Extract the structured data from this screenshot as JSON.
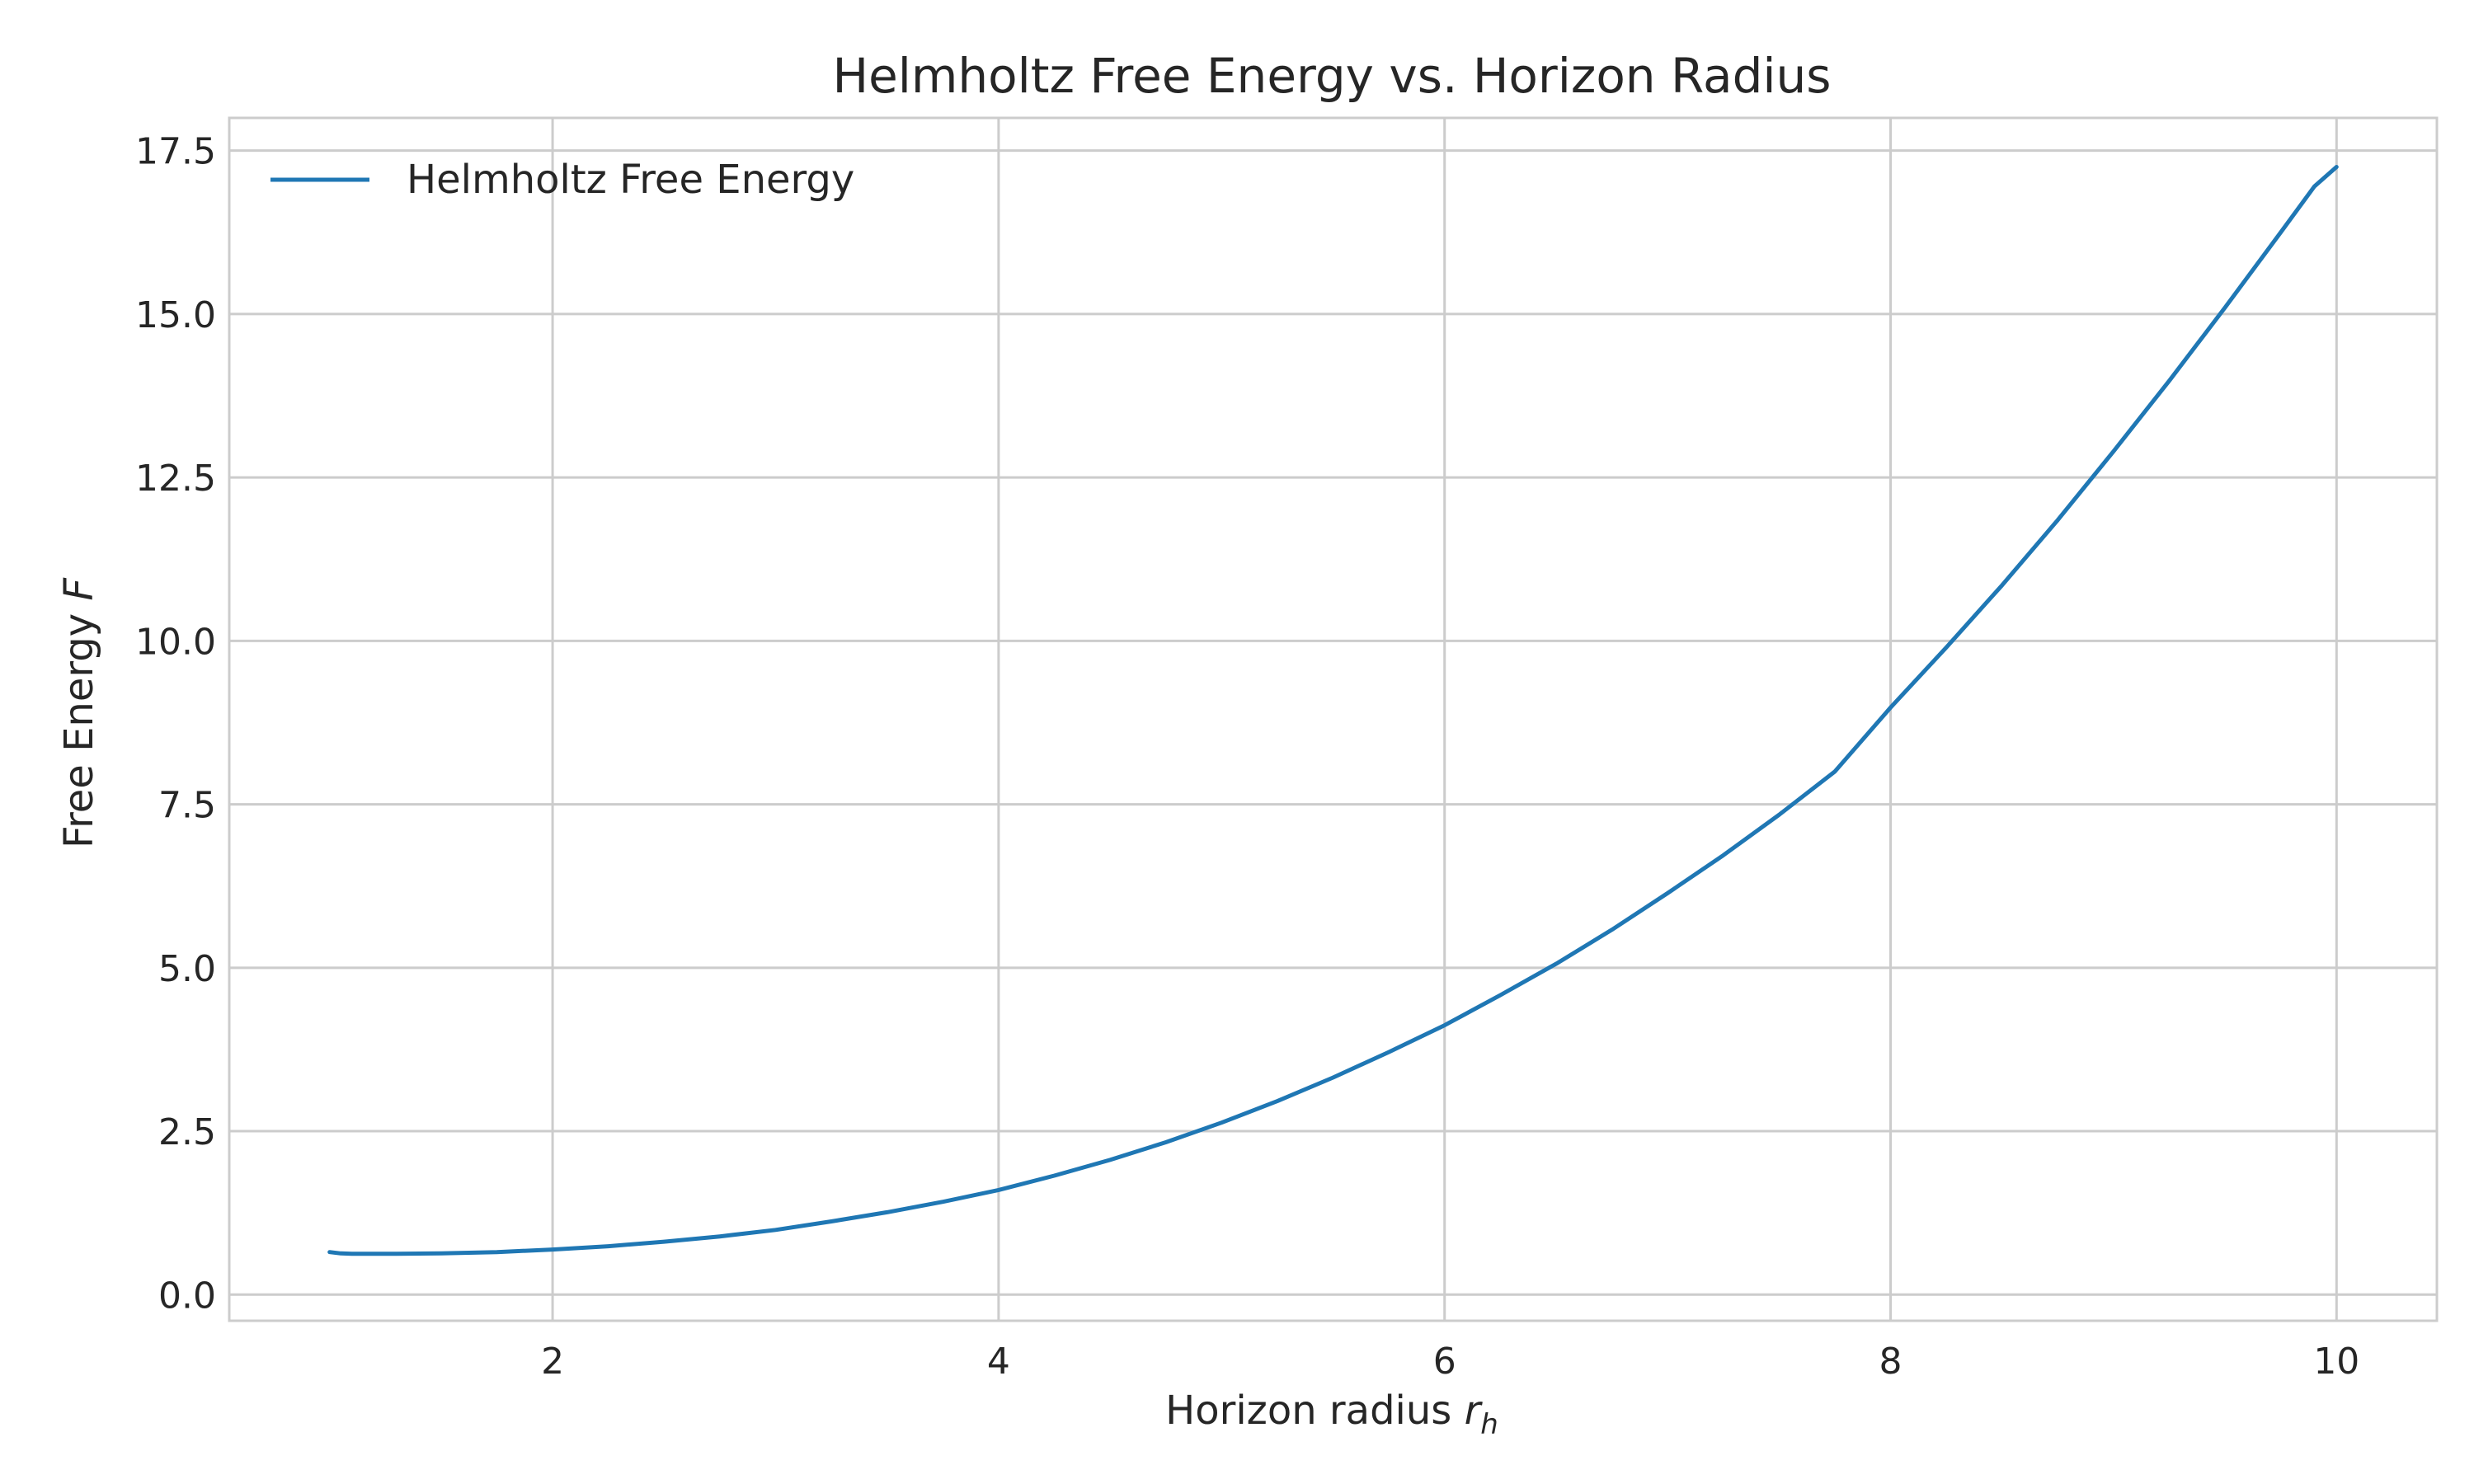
{
  "chart_data": {
    "type": "line",
    "title": "Helmholtz Free Energy vs. Horizon Radius",
    "xlabel": "Horizon radius ",
    "xlabel_symbol": "r",
    "xlabel_subscript": "h",
    "ylabel": "Free Energy ",
    "ylabel_symbol": "F",
    "xlim": [
      0.55,
      10.45
    ],
    "ylim": [
      -0.4,
      18.0
    ],
    "xticks": [
      2,
      4,
      6,
      8,
      10
    ],
    "xtick_labels": [
      "2",
      "4",
      "6",
      "8",
      "10"
    ],
    "yticks": [
      0,
      2.5,
      5,
      7.5,
      10,
      12.5,
      15,
      17.5
    ],
    "ytick_labels": [
      "0.0",
      "2.5",
      "5.0",
      "7.5",
      "10.0",
      "12.5",
      "15.0",
      "17.5"
    ],
    "grid": true,
    "legend_position": "top-left",
    "series": [
      {
        "name": "Helmholtz Free Energy",
        "color": "#1f77b4",
        "x": [
          1.0,
          1.05,
          1.1,
          1.2,
          1.3,
          1.5,
          1.75,
          2.0,
          2.25,
          2.5,
          2.75,
          3.0,
          3.25,
          3.5,
          3.75,
          4.0,
          4.25,
          4.5,
          4.75,
          5.0,
          5.25,
          5.5,
          5.75,
          6.0,
          6.25,
          6.5,
          6.75,
          7.0,
          7.25,
          7.5,
          7.75,
          8.0,
          8.25,
          8.5,
          8.75,
          9.0,
          9.25,
          9.5,
          9.75,
          9.9,
          10.0
        ],
        "y": [
          0.65,
          0.63,
          0.625,
          0.625,
          0.625,
          0.63,
          0.65,
          0.69,
          0.74,
          0.81,
          0.89,
          0.99,
          1.12,
          1.26,
          1.42,
          1.6,
          1.82,
          2.06,
          2.33,
          2.63,
          2.96,
          3.32,
          3.71,
          4.12,
          4.58,
          5.06,
          5.58,
          6.14,
          6.72,
          7.34,
          8.0,
          8.98,
          9.9,
          10.85,
          11.85,
          12.9,
          13.98,
          15.1,
          16.25,
          16.95,
          17.25
        ]
      }
    ]
  }
}
